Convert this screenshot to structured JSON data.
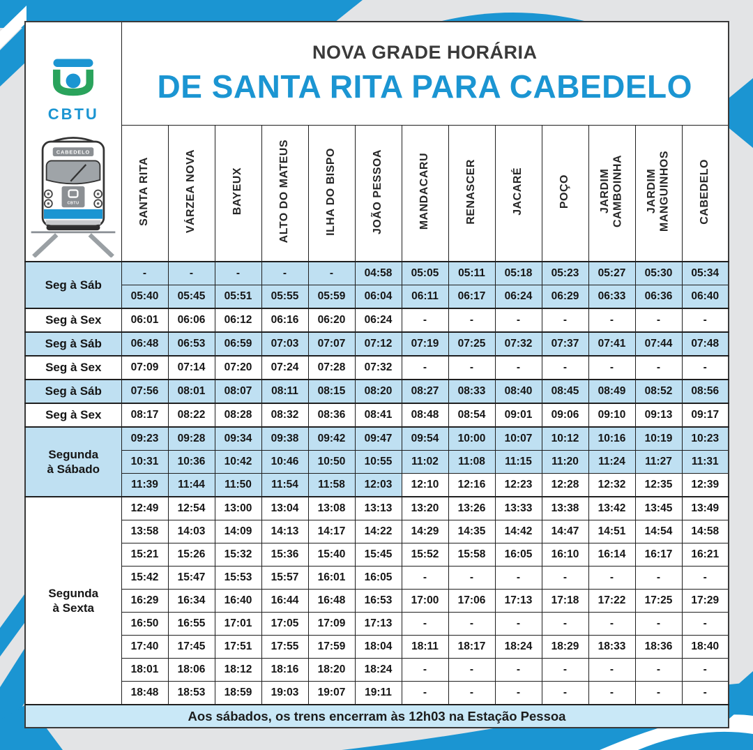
{
  "header": {
    "subtitle": "NOVA GRADE HORÁRIA",
    "title": "DE SANTA RITA PARA CABEDELO",
    "logo_text": "CBTU",
    "train_destination": "CABEDELO"
  },
  "stations": [
    "SANTA RITA",
    "VÁRZEA NOVA",
    "BAYEUX",
    "ALTO DO MATEUS",
    "ILHA DO BISPO",
    "JOÃO PESSOA",
    "MANDACARU",
    "RENASCER",
    "JACARÉ",
    "POÇO",
    "JARDIM\nCAMBOINHA",
    "JARDIM\nMANGUINHOS",
    "CABEDELO"
  ],
  "row_groups": [
    {
      "label": "Seg à Sáb",
      "shade": "blue",
      "rows": [
        {
          "shade": "blue",
          "cells": [
            "-",
            "-",
            "-",
            "-",
            "-",
            "04:58",
            "05:05",
            "05:11",
            "05:18",
            "05:23",
            "05:27",
            "05:30",
            "05:34"
          ]
        },
        {
          "shade": "blue",
          "cells": [
            "05:40",
            "05:45",
            "05:51",
            "05:55",
            "05:59",
            "06:04",
            "06:11",
            "06:17",
            "06:24",
            "06:29",
            "06:33",
            "06:36",
            "06:40"
          ]
        }
      ]
    },
    {
      "label": "Seg à Sex",
      "shade": "white",
      "rows": [
        {
          "shade": "white",
          "cells": [
            "06:01",
            "06:06",
            "06:12",
            "06:16",
            "06:20",
            "06:24",
            "-",
            "-",
            "-",
            "-",
            "-",
            "-",
            "-"
          ]
        }
      ]
    },
    {
      "label": "Seg à Sáb",
      "shade": "blue",
      "rows": [
        {
          "shade": "blue",
          "cells": [
            "06:48",
            "06:53",
            "06:59",
            "07:03",
            "07:07",
            "07:12",
            "07:19",
            "07:25",
            "07:32",
            "07:37",
            "07:41",
            "07:44",
            "07:48"
          ]
        }
      ]
    },
    {
      "label": "Seg à Sex",
      "shade": "white",
      "rows": [
        {
          "shade": "white",
          "cells": [
            "07:09",
            "07:14",
            "07:20",
            "07:24",
            "07:28",
            "07:32",
            "-",
            "-",
            "-",
            "-",
            "-",
            "-",
            "-"
          ]
        }
      ]
    },
    {
      "label": "Seg à Sáb",
      "shade": "blue",
      "rows": [
        {
          "shade": "blue",
          "cells": [
            "07:56",
            "08:01",
            "08:07",
            "08:11",
            "08:15",
            "08:20",
            "08:27",
            "08:33",
            "08:40",
            "08:45",
            "08:49",
            "08:52",
            "08:56"
          ]
        }
      ]
    },
    {
      "label": "Seg à Sex",
      "shade": "white",
      "rows": [
        {
          "shade": "white",
          "cells": [
            "08:17",
            "08:22",
            "08:28",
            "08:32",
            "08:36",
            "08:41",
            "08:48",
            "08:54",
            "09:01",
            "09:06",
            "09:10",
            "09:13",
            "09:17"
          ]
        }
      ]
    },
    {
      "label": "Segunda\nà Sábado",
      "shade": "blue",
      "rows": [
        {
          "shade": "blue",
          "cells": [
            "09:23",
            "09:28",
            "09:34",
            "09:38",
            "09:42",
            "09:47",
            "09:54",
            "10:00",
            "10:07",
            "10:12",
            "10:16",
            "10:19",
            "10:23"
          ]
        },
        {
          "shade": "blue",
          "cells": [
            "10:31",
            "10:36",
            "10:42",
            "10:46",
            "10:50",
            "10:55",
            "11:02",
            "11:08",
            "11:15",
            "11:20",
            "11:24",
            "11:27",
            "11:31"
          ]
        },
        {
          "shade": [
            "blue",
            "blue",
            "blue",
            "blue",
            "blue",
            "blue",
            "white",
            "white",
            "white",
            "white",
            "white",
            "white",
            "white"
          ],
          "cells": [
            "11:39",
            "11:44",
            "11:50",
            "11:54",
            "11:58",
            "12:03",
            "12:10",
            "12:16",
            "12:23",
            "12:28",
            "12:32",
            "12:35",
            "12:39"
          ]
        }
      ]
    },
    {
      "label": "Segunda\nà Sexta",
      "shade": "white",
      "rows": [
        {
          "shade": "white",
          "cells": [
            "12:49",
            "12:54",
            "13:00",
            "13:04",
            "13:08",
            "13:13",
            "13:20",
            "13:26",
            "13:33",
            "13:38",
            "13:42",
            "13:45",
            "13:49"
          ]
        },
        {
          "shade": "white",
          "cells": [
            "13:58",
            "14:03",
            "14:09",
            "14:13",
            "14:17",
            "14:22",
            "14:29",
            "14:35",
            "14:42",
            "14:47",
            "14:51",
            "14:54",
            "14:58"
          ]
        },
        {
          "shade": "white",
          "cells": [
            "15:21",
            "15:26",
            "15:32",
            "15:36",
            "15:40",
            "15:45",
            "15:52",
            "15:58",
            "16:05",
            "16:10",
            "16:14",
            "16:17",
            "16:21"
          ]
        },
        {
          "shade": "white",
          "cells": [
            "15:42",
            "15:47",
            "15:53",
            "15:57",
            "16:01",
            "16:05",
            "-",
            "-",
            "-",
            "-",
            "-",
            "-",
            "-"
          ]
        },
        {
          "shade": "white",
          "cells": [
            "16:29",
            "16:34",
            "16:40",
            "16:44",
            "16:48",
            "16:53",
            "17:00",
            "17:06",
            "17:13",
            "17:18",
            "17:22",
            "17:25",
            "17:29"
          ]
        },
        {
          "shade": "white",
          "cells": [
            "16:50",
            "16:55",
            "17:01",
            "17:05",
            "17:09",
            "17:13",
            "-",
            "-",
            "-",
            "-",
            "-",
            "-",
            "-"
          ]
        },
        {
          "shade": "white",
          "cells": [
            "17:40",
            "17:45",
            "17:51",
            "17:55",
            "17:59",
            "18:04",
            "18:11",
            "18:17",
            "18:24",
            "18:29",
            "18:33",
            "18:36",
            "18:40"
          ]
        },
        {
          "shade": "white",
          "cells": [
            "18:01",
            "18:06",
            "18:12",
            "18:16",
            "18:20",
            "18:24",
            "-",
            "-",
            "-",
            "-",
            "-",
            "-",
            "-"
          ]
        },
        {
          "shade": "white",
          "cells": [
            "18:48",
            "18:53",
            "18:59",
            "19:03",
            "19:07",
            "19:11",
            "-",
            "-",
            "-",
            "-",
            "-",
            "-",
            "-"
          ]
        }
      ]
    }
  ],
  "footer": {
    "note": "Aos sábados, os trens encerram às 12h03 na Estação Pessoa"
  },
  "colors": {
    "accent_blue": "#1b95d2",
    "cell_blue": "#bfe0f2",
    "footer_blue": "#c9e8f7",
    "logo_green": "#2aa35c",
    "page_gray": "#e3e4e6"
  }
}
